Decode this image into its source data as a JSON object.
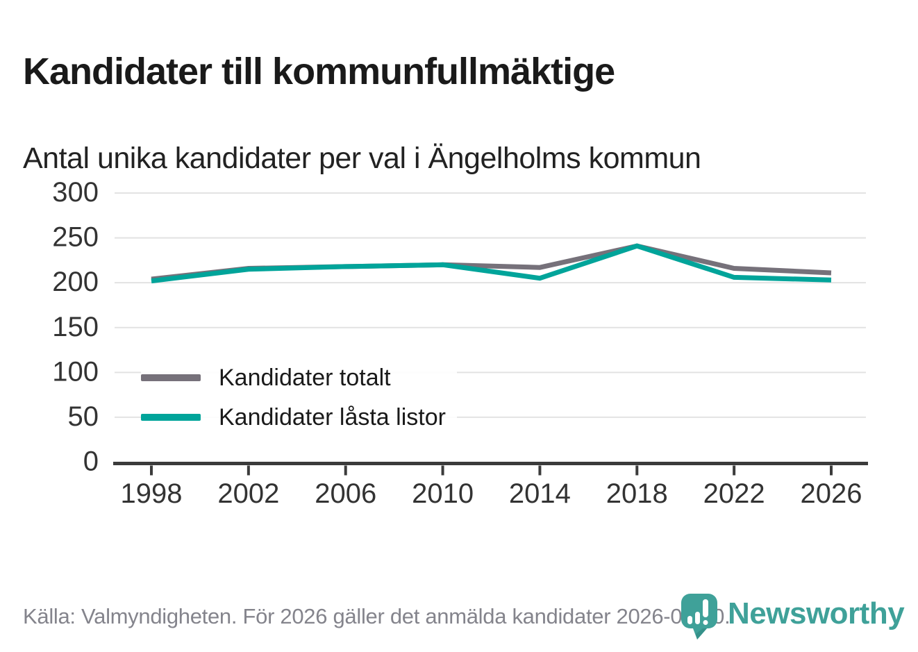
{
  "header": {
    "title": "Kandidater till kommunfullmäktige",
    "subtitle": "Antal unika kandidater per val i Ängelholms kommun"
  },
  "chart_data": {
    "type": "line",
    "categories": [
      "1998",
      "2002",
      "2006",
      "2010",
      "2014",
      "2018",
      "2022",
      "2026"
    ],
    "series": [
      {
        "name": "Kandidater totalt",
        "color": "#76717a",
        "values": [
          204,
          216,
          218,
          220,
          217,
          241,
          216,
          211
        ]
      },
      {
        "name": "Kandidater låsta listor",
        "color": "#00a49a",
        "values": [
          202,
          215,
          218,
          220,
          205,
          241,
          206,
          203
        ]
      }
    ],
    "title": "Kandidater till kommunfullmäktige",
    "subtitle": "Antal unika kandidater per val i Ängelholms kommun",
    "xlabel": "",
    "ylabel": "",
    "ylim": [
      0,
      300
    ],
    "yticks": [
      0,
      50,
      100,
      150,
      200,
      250,
      300
    ],
    "grid": true,
    "legend_position": "inside-left"
  },
  "legend": {
    "items": [
      {
        "label": "Kandidater totalt"
      },
      {
        "label": "Kandidater låsta listor"
      }
    ]
  },
  "footer": {
    "source": "Källa: Valmyndigheten. För 2026 gäller det anmälda kandidater 2026-04-10.",
    "brand": "Newsworthy"
  },
  "colors": {
    "series_total": "#76717a",
    "series_locked": "#00a49a",
    "brand_teal": "#3fa199",
    "brand_teal_dark": "#35918a",
    "axis": "#3b3b3b",
    "grid": "#e2e2e2",
    "tick_text": "#333333",
    "muted_text": "#84848c"
  }
}
